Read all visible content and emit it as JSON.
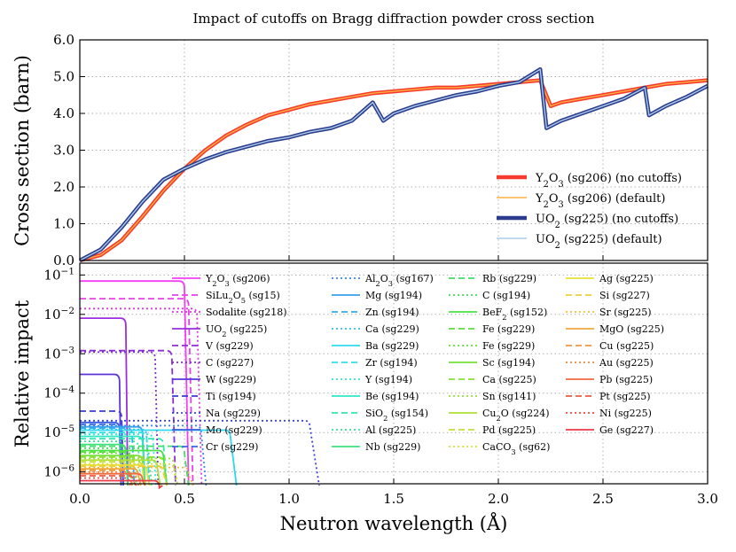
{
  "chart_data": {
    "title": "Impact of cutoffs on Bragg diffraction powder cross section",
    "xlabel": "Neutron wavelength (Å)",
    "xlim": [
      0.0,
      3.0
    ],
    "x_ticks": [
      "0.0",
      "0.5",
      "1.0",
      "1.5",
      "2.0",
      "2.5",
      "3.0"
    ],
    "x_tick_values": [
      0.0,
      0.5,
      1.0,
      1.5,
      2.0,
      2.5,
      3.0
    ],
    "top": {
      "type": "line",
      "ylabel": "Cross section (barn)",
      "ylim": [
        0.0,
        6.0
      ],
      "y_ticks": [
        "0.0",
        "1.0",
        "2.0",
        "3.0",
        "4.0",
        "5.0",
        "6.0"
      ],
      "y_tick_values": [
        0,
        1,
        2,
        3,
        4,
        5,
        6
      ],
      "grid": true,
      "legend_position": "bottom-right",
      "series": [
        {
          "name": "Y2O3 (sg206) (no cutoffs)",
          "label_main": "Y",
          "label_sub": "2",
          "label_main2": "O",
          "label_sub2": "3",
          "label_rest": " (sg206) (no cutoffs)",
          "color": "#f83a2c",
          "width": 4.5,
          "x": [
            0,
            0.1,
            0.2,
            0.3,
            0.4,
            0.5,
            0.6,
            0.7,
            0.8,
            0.9,
            1.0,
            1.1,
            1.2,
            1.3,
            1.4,
            1.5,
            1.6,
            1.7,
            1.8,
            1.9,
            2.0,
            2.1,
            2.2,
            2.25,
            2.3,
            2.4,
            2.5,
            2.6,
            2.7,
            2.8,
            2.9,
            3.0
          ],
          "y": [
            0.0,
            0.15,
            0.55,
            1.2,
            1.9,
            2.5,
            3.0,
            3.4,
            3.7,
            3.95,
            4.1,
            4.25,
            4.35,
            4.45,
            4.55,
            4.6,
            4.65,
            4.7,
            4.7,
            4.75,
            4.8,
            4.85,
            4.9,
            4.2,
            4.3,
            4.4,
            4.5,
            4.6,
            4.7,
            4.8,
            4.85,
            4.9
          ]
        },
        {
          "name": "Y2O3 (sg206) (default)",
          "label_main": "Y",
          "label_sub": "2",
          "label_main2": "O",
          "label_sub2": "3",
          "label_rest": " (sg206) (default)",
          "color": "#f9b042",
          "width": 1.4,
          "x": [
            0,
            0.1,
            0.2,
            0.3,
            0.4,
            0.5,
            0.6,
            0.7,
            0.8,
            0.9,
            1.0,
            1.1,
            1.2,
            1.3,
            1.4,
            1.5,
            1.6,
            1.7,
            1.8,
            1.9,
            2.0,
            2.1,
            2.2,
            2.25,
            2.3,
            2.4,
            2.5,
            2.6,
            2.7,
            2.8,
            2.9,
            3.0
          ],
          "y": [
            0.0,
            0.15,
            0.55,
            1.2,
            1.9,
            2.5,
            3.0,
            3.4,
            3.7,
            3.95,
            4.1,
            4.25,
            4.35,
            4.45,
            4.55,
            4.6,
            4.65,
            4.7,
            4.7,
            4.75,
            4.8,
            4.85,
            4.9,
            4.2,
            4.3,
            4.4,
            4.5,
            4.6,
            4.7,
            4.8,
            4.85,
            4.9
          ]
        },
        {
          "name": "UO2 (sg225) (no cutoffs)",
          "label_main": "UO",
          "label_sub": "2",
          "label_main2": "",
          "label_sub2": "",
          "label_rest": " (sg225) (no cutoffs)",
          "color": "#2d3b8e",
          "width": 4.5,
          "x": [
            0,
            0.1,
            0.2,
            0.3,
            0.4,
            0.5,
            0.6,
            0.7,
            0.8,
            0.9,
            1.0,
            1.1,
            1.2,
            1.3,
            1.4,
            1.45,
            1.5,
            1.6,
            1.7,
            1.8,
            1.9,
            2.0,
            2.1,
            2.2,
            2.23,
            2.3,
            2.4,
            2.5,
            2.6,
            2.7,
            2.72,
            2.8,
            2.9,
            3.0
          ],
          "y": [
            0.0,
            0.3,
            0.9,
            1.6,
            2.2,
            2.5,
            2.75,
            2.95,
            3.1,
            3.25,
            3.35,
            3.5,
            3.6,
            3.8,
            4.3,
            3.8,
            4.0,
            4.2,
            4.35,
            4.5,
            4.6,
            4.75,
            4.85,
            5.2,
            3.6,
            3.8,
            4.0,
            4.2,
            4.4,
            4.7,
            3.95,
            4.2,
            4.45,
            4.75
          ]
        },
        {
          "name": "UO2 (sg225) (default)",
          "label_main": "UO",
          "label_sub": "2",
          "label_main2": "",
          "label_sub2": "",
          "label_rest": " (sg225) (default)",
          "color": "#a9cde8",
          "width": 1.4,
          "x": [
            0,
            0.1,
            0.2,
            0.3,
            0.4,
            0.5,
            0.6,
            0.7,
            0.8,
            0.9,
            1.0,
            1.1,
            1.2,
            1.3,
            1.4,
            1.45,
            1.5,
            1.6,
            1.7,
            1.8,
            1.9,
            2.0,
            2.1,
            2.2,
            2.23,
            2.3,
            2.4,
            2.5,
            2.6,
            2.7,
            2.72,
            2.8,
            2.9,
            3.0
          ],
          "y": [
            0.0,
            0.3,
            0.9,
            1.6,
            2.2,
            2.5,
            2.75,
            2.95,
            3.1,
            3.25,
            3.35,
            3.5,
            3.6,
            3.8,
            4.3,
            3.8,
            4.0,
            4.2,
            4.35,
            4.5,
            4.6,
            4.75,
            4.85,
            5.2,
            3.6,
            3.8,
            4.0,
            4.2,
            4.4,
            4.7,
            3.95,
            4.2,
            4.45,
            4.75
          ]
        }
      ]
    },
    "bottom": {
      "type": "line",
      "ylabel": "Relative impact",
      "yscale": "log",
      "ylim_log10": [
        -6.3,
        -0.7
      ],
      "y_ticks": [
        {
          "base": "10",
          "exp": "−1",
          "log": -1
        },
        {
          "base": "10",
          "exp": "−2",
          "log": -2
        },
        {
          "base": "10",
          "exp": "−3",
          "log": -3
        },
        {
          "base": "10",
          "exp": "−4",
          "log": -4
        },
        {
          "base": "10",
          "exp": "−5",
          "log": -5
        },
        {
          "base": "10",
          "exp": "−6",
          "log": -6
        }
      ],
      "grid": true,
      "legend_position": "top (4 columns)",
      "series": [
        {
          "main": "Y",
          "sub": "2",
          "main2": "O",
          "sub2": "3",
          "rest": " (sg206)",
          "color": "#f23ff2",
          "style": "solid",
          "level": 0.07,
          "cutoff": 0.5
        },
        {
          "main": "SiLu",
          "sub": "2",
          "main2": "O",
          "sub2": "5",
          "rest": " (sg15)",
          "color": "#e93ee9",
          "style": "dashed",
          "level": 0.025,
          "cutoff": 0.52
        },
        {
          "main": "Sodalite",
          "sub": "",
          "main2": "",
          "sub2": "",
          "rest": " (sg218)",
          "color": "#de38de",
          "style": "dotted",
          "level": 0.014,
          "cutoff": 0.56
        },
        {
          "main": "UO",
          "sub": "2",
          "main2": "",
          "sub2": "",
          "rest": " (sg225)",
          "color": "#9b2ee0",
          "style": "solid",
          "level": 0.008,
          "cutoff": 0.22
        },
        {
          "main": "V",
          "sub": "",
          "main2": "",
          "sub2": "",
          "rest": " (sg229)",
          "color": "#8a2ed8",
          "style": "dashed",
          "level": 0.0012,
          "cutoff": 0.44
        },
        {
          "main": "C",
          "sub": "",
          "main2": "",
          "sub2": "",
          "rest": " (sg227)",
          "color": "#7b2ed0",
          "style": "dotted",
          "level": 0.0011,
          "cutoff": 0.36
        },
        {
          "main": "W",
          "sub": "",
          "main2": "",
          "sub2": "",
          "rest": " (sg229)",
          "color": "#5a34d8",
          "style": "solid",
          "level": 0.0003,
          "cutoff": 0.19
        },
        {
          "main": "Ti",
          "sub": "",
          "main2": "",
          "sub2": "",
          "rest": " (sg194)",
          "color": "#3a3ad8",
          "style": "dashed",
          "level": 3.5e-05,
          "cutoff": 0.2
        },
        {
          "main": "Na",
          "sub": "",
          "main2": "",
          "sub2": "",
          "rest": " (sg229)",
          "color": "#3a44d8",
          "style": "dotted",
          "level": 2e-05,
          "cutoff": 1.1
        },
        {
          "main": "Mo",
          "sub": "",
          "main2": "",
          "sub2": "",
          "rest": " (sg229)",
          "color": "#3a5ce0",
          "style": "solid",
          "level": 1.8e-05,
          "cutoff": 0.19
        },
        {
          "main": "Cr",
          "sub": "",
          "main2": "",
          "sub2": "",
          "rest": " (sg229)",
          "color": "#3a68e0",
          "style": "dashed",
          "level": 1.6e-05,
          "cutoff": 0.2
        },
        {
          "main": "Al",
          "sub": "2",
          "main2": "O",
          "sub2": "3",
          "rest": " (sg167)",
          "color": "#3a84e8",
          "style": "dotted",
          "level": 1.5e-05,
          "cutoff": 0.58
        },
        {
          "main": "Mg",
          "sub": "",
          "main2": "",
          "sub2": "",
          "rest": " (sg194)",
          "color": "#36a0ee",
          "style": "solid",
          "level": 1.4e-05,
          "cutoff": 0.3
        },
        {
          "main": "Zn",
          "sub": "",
          "main2": "",
          "sub2": "",
          "rest": " (sg194)",
          "color": "#36aaee",
          "style": "dashed",
          "level": 1.3e-05,
          "cutoff": 0.25
        },
        {
          "main": "Ca",
          "sub": "",
          "main2": "",
          "sub2": "",
          "rest": " (sg229)",
          "color": "#30bef0",
          "style": "dotted",
          "level": 1.2e-05,
          "cutoff": 0.32
        },
        {
          "main": "Ba",
          "sub": "",
          "main2": "",
          "sub2": "",
          "rest": " (sg229)",
          "color": "#2ed8ee",
          "style": "solid",
          "level": 1.15e-05,
          "cutoff": 0.72
        },
        {
          "main": "Zr",
          "sub": "",
          "main2": "",
          "sub2": "",
          "rest": " (sg194)",
          "color": "#2ee0e8",
          "style": "dashed",
          "level": 1e-05,
          "cutoff": 0.32
        },
        {
          "main": "Y",
          "sub": "",
          "main2": "",
          "sub2": "",
          "rest": " (sg194)",
          "color": "#2ee8dc",
          "style": "dotted",
          "level": 9e-06,
          "cutoff": 0.35
        },
        {
          "main": "Be",
          "sub": "",
          "main2": "",
          "sub2": "",
          "rest": " (sg194)",
          "color": "#2ee8c4",
          "style": "solid",
          "level": 8e-06,
          "cutoff": 0.3
        },
        {
          "main": "SiO",
          "sub": "2",
          "main2": "",
          "sub2": "",
          "rest": " (sg154)",
          "color": "#2ee8b0",
          "style": "dashed",
          "level": 7e-06,
          "cutoff": 0.4
        },
        {
          "main": "Al",
          "sub": "",
          "main2": "",
          "sub2": "",
          "rest": " (sg225)",
          "color": "#34e098",
          "style": "dotted",
          "level": 6e-06,
          "cutoff": 0.28
        },
        {
          "main": "Nb",
          "sub": "",
          "main2": "",
          "sub2": "",
          "rest": " (sg229)",
          "color": "#3ee07c",
          "style": "solid",
          "level": 5e-06,
          "cutoff": 0.22
        },
        {
          "main": "Rb",
          "sub": "",
          "main2": "",
          "sub2": "",
          "rest": " (sg229)",
          "color": "#3ee066",
          "style": "dashed",
          "level": 4.5e-06,
          "cutoff": 0.5
        },
        {
          "main": "C",
          "sub": "",
          "main2": "",
          "sub2": "",
          "rest": " (sg194)",
          "color": "#40e058",
          "style": "dotted",
          "level": 4e-06,
          "cutoff": 0.33
        },
        {
          "main": "BeF",
          "sub": "2",
          "main2": "",
          "sub2": "",
          "rest": " (sg152)",
          "color": "#4ae044",
          "style": "solid",
          "level": 3.5e-06,
          "cutoff": 0.4
        },
        {
          "main": "Fe",
          "sub": "",
          "main2": "",
          "sub2": "",
          "rest": " (sg229)",
          "color": "#58e03c",
          "style": "dashed",
          "level": 3.2e-06,
          "cutoff": 0.24
        },
        {
          "main": "Fe",
          "sub": "",
          "main2": "",
          "sub2": "",
          "rest": " (sg229)",
          "color": "#66e03a",
          "style": "dotted",
          "level": 3e-06,
          "cutoff": 0.26
        },
        {
          "main": "Sc",
          "sub": "",
          "main2": "",
          "sub2": "",
          "rest": " (sg194)",
          "color": "#76e038",
          "style": "solid",
          "level": 2.6e-06,
          "cutoff": 0.3
        },
        {
          "main": "Ca",
          "sub": "",
          "main2": "",
          "sub2": "",
          "rest": " (sg225)",
          "color": "#86e036",
          "style": "dashed",
          "level": 2.4e-06,
          "cutoff": 0.4
        },
        {
          "main": "Sn",
          "sub": "",
          "main2": "",
          "sub2": "",
          "rest": " (sg141)",
          "color": "#98e036",
          "style": "dotted",
          "level": 2.2e-06,
          "cutoff": 0.45
        },
        {
          "main": "Cu",
          "sub": "2",
          "main2": "O",
          "sub2": "",
          "rest": " (sg224)",
          "color": "#aee036",
          "style": "solid",
          "level": 2e-06,
          "cutoff": 0.37
        },
        {
          "main": "Pd",
          "sub": "",
          "main2": "",
          "sub2": "",
          "rest": " (sg225)",
          "color": "#c4e036",
          "style": "dashed",
          "level": 1.8e-06,
          "cutoff": 0.3
        },
        {
          "main": "CaCO",
          "sub": "3",
          "main2": "",
          "sub2": "",
          "rest": " (sg62)",
          "color": "#d4e036",
          "style": "dotted",
          "level": 1.6e-06,
          "cutoff": 0.45
        },
        {
          "main": "Ag",
          "sub": "",
          "main2": "",
          "sub2": "",
          "rest": " (sg225)",
          "color": "#e8e038",
          "style": "solid",
          "level": 1.5e-06,
          "cutoff": 0.32
        },
        {
          "main": "Si",
          "sub": "",
          "main2": "",
          "sub2": "",
          "rest": " (sg227)",
          "color": "#ecd038",
          "style": "dashed",
          "level": 1.4e-06,
          "cutoff": 0.4
        },
        {
          "main": "Sr",
          "sub": "",
          "main2": "",
          "sub2": "",
          "rest": " (sg225)",
          "color": "#eec03a",
          "style": "dotted",
          "level": 1.3e-06,
          "cutoff": 0.52
        },
        {
          "main": "MgO",
          "sub": "",
          "main2": "",
          "sub2": "",
          "rest": " (sg225)",
          "color": "#f0a83c",
          "style": "solid",
          "level": 1.2e-06,
          "cutoff": 0.28
        },
        {
          "main": "Cu",
          "sub": "",
          "main2": "",
          "sub2": "",
          "rest": " (sg225)",
          "color": "#f0983c",
          "style": "dashed",
          "level": 1.1e-06,
          "cutoff": 0.24
        },
        {
          "main": "Au",
          "sub": "",
          "main2": "",
          "sub2": "",
          "rest": " (sg225)",
          "color": "#f0883e",
          "style": "dotted",
          "level": 1e-06,
          "cutoff": 0.27
        },
        {
          "main": "Pb",
          "sub": "",
          "main2": "",
          "sub2": "",
          "rest": " (sg225)",
          "color": "#f06a3e",
          "style": "solid",
          "level": 9e-07,
          "cutoff": 0.3
        },
        {
          "main": "Pt",
          "sub": "",
          "main2": "",
          "sub2": "",
          "rest": " (sg225)",
          "color": "#ee5a3e",
          "style": "dashed",
          "level": 8e-07,
          "cutoff": 0.26
        },
        {
          "main": "Ni",
          "sub": "",
          "main2": "",
          "sub2": "",
          "rest": " (sg225)",
          "color": "#ee4a3e",
          "style": "dotted",
          "level": 7e-07,
          "cutoff": 0.24
        },
        {
          "main": "Ge",
          "sub": "",
          "main2": "",
          "sub2": "",
          "rest": " (sg227)",
          "color": "#ec3a48",
          "style": "solid",
          "level": 6e-07,
          "cutoff": 0.38
        }
      ]
    }
  }
}
